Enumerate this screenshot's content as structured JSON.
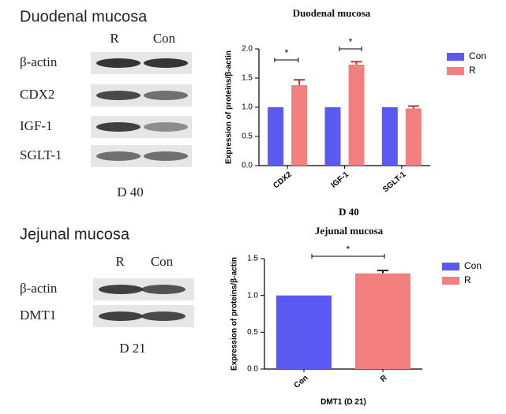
{
  "blots": [
    {
      "title": "Duodenal mucosa",
      "lanes": [
        "R",
        "Con"
      ],
      "rows": [
        "β-actin",
        "CDX2",
        "IGF-1",
        "SGLT-1"
      ],
      "label": "D 40"
    },
    {
      "title": "Jejunal mucosa",
      "lanes": [
        "R",
        "Con"
      ],
      "rows": [
        "β-actin",
        "DMT1"
      ],
      "label": "D 21"
    }
  ],
  "chart_data": [
    {
      "type": "bar",
      "title": "Duodenal mucosa",
      "ylabel": "Expression of proteins/β-actin",
      "xlabel": "D 40",
      "categories": [
        "CDX2",
        "IGF-1",
        "SGLT-1"
      ],
      "series": [
        {
          "name": "Con",
          "color": "#5a5af2",
          "values": [
            1,
            1,
            1
          ]
        },
        {
          "name": "R",
          "color": "#f47f7f",
          "values": [
            1.38,
            1.73,
            0.98
          ],
          "errors": [
            0.09,
            0.05,
            0.04
          ]
        }
      ],
      "ylim": [
        0,
        2
      ],
      "yticks": [
        {
          "value": 0,
          "label": "0.0"
        },
        {
          "value": 0.5,
          "label": "0.5"
        },
        {
          "value": 1,
          "label": "1.0"
        },
        {
          "value": 1.5,
          "label": "1.5"
        },
        {
          "value": 2,
          "label": "2.0"
        }
      ],
      "annotations": [
        "*",
        "*"
      ],
      "legend": "upper right"
    },
    {
      "type": "bar",
      "title": "Jejunal mucosa",
      "ylabel": "Expression of proteins/β-actin",
      "xlabel": "DMT1 (D 21)",
      "categories": [
        "Con",
        "R"
      ],
      "values": [
        1,
        1.3
      ],
      "errors": [
        null,
        0.04
      ],
      "colors": [
        "#5a5af2",
        "#f47f7f"
      ],
      "ylim": [
        0,
        1.5
      ],
      "yticks": [
        {
          "value": 0,
          "label": "0.0"
        },
        {
          "value": 0.5,
          "label": "0.5"
        },
        {
          "value": 1,
          "label": "1.0"
        },
        {
          "value": 1.5,
          "label": "1.5"
        }
      ],
      "annotations": [
        "*"
      ],
      "legend": "upper right"
    }
  ]
}
